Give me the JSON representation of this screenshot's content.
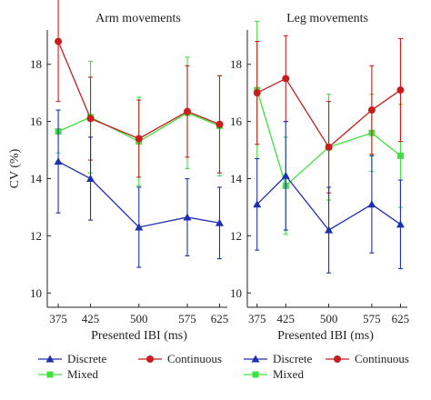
{
  "chart_data": [
    {
      "type": "line",
      "title": "Arm movements",
      "xlabel": "Presented IBI (ms)",
      "ylabel": "CV (%)",
      "categories": [
        "375",
        "425",
        "500",
        "575",
        "625"
      ],
      "x": [
        375,
        425,
        500,
        575,
        625
      ],
      "xlim": [
        358,
        637
      ],
      "ylim": [
        9.5,
        19.2
      ],
      "yticks": [
        10,
        12,
        14,
        16,
        18
      ],
      "grid": false,
      "series": [
        {
          "name": "Discrete",
          "color": "#1f2fb3",
          "marker": "triangle",
          "values": [
            14.6,
            14.0,
            12.3,
            12.65,
            12.45
          ],
          "err": [
            1.8,
            1.45,
            1.4,
            1.35,
            1.25
          ]
        },
        {
          "name": "Continuous",
          "color": "#c81e1e",
          "marker": "circle",
          "values": [
            18.8,
            16.1,
            15.4,
            16.35,
            15.9
          ],
          "err": [
            2.1,
            1.45,
            1.35,
            1.6,
            1.7
          ]
        },
        {
          "name": "Mixed",
          "color": "#3fe03f",
          "marker": "square",
          "values": [
            15.65,
            16.15,
            15.3,
            16.3,
            15.85
          ],
          "err": [
            0.75,
            1.95,
            1.55,
            1.95,
            1.75
          ]
        }
      ]
    },
    {
      "type": "line",
      "title": "Leg movements",
      "xlabel": "Presented IBI (ms)",
      "ylabel": "",
      "categories": [
        "375",
        "425",
        "500",
        "575",
        "625"
      ],
      "x": [
        375,
        425,
        500,
        575,
        625
      ],
      "xlim": [
        358,
        637
      ],
      "ylim": [
        9.5,
        19.2
      ],
      "yticks": [
        10,
        12,
        14,
        16,
        18
      ],
      "grid": false,
      "series": [
        {
          "name": "Discrete",
          "color": "#1f2fb3",
          "marker": "triangle",
          "values": [
            13.1,
            14.1,
            12.2,
            13.1,
            12.4
          ],
          "err": [
            1.6,
            1.9,
            1.5,
            1.7,
            1.55
          ]
        },
        {
          "name": "Continuous",
          "color": "#c81e1e",
          "marker": "circle",
          "values": [
            17.0,
            17.5,
            15.1,
            16.4,
            17.1
          ],
          "err": [
            1.8,
            1.5,
            1.6,
            1.55,
            1.8
          ]
        },
        {
          "name": "Mixed",
          "color": "#3fe03f",
          "marker": "square",
          "values": [
            17.1,
            13.75,
            15.1,
            15.6,
            14.8
          ],
          "err": [
            2.4,
            1.7,
            1.85,
            1.35,
            1.8
          ]
        }
      ]
    }
  ],
  "legend": {
    "discrete": "Discrete",
    "continuous": "Continuous",
    "mixed": "Mixed"
  }
}
